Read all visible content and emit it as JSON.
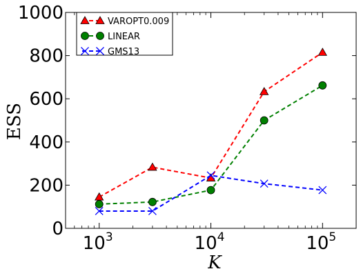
{
  "chart_data": {
    "type": "line",
    "xscale": "log",
    "xlim": [
      500,
      200000
    ],
    "ylim": [
      0,
      1000
    ],
    "xlabel": "K",
    "ylabel": "ESS",
    "grid": false,
    "legend_position": "top-left",
    "x": [
      1000,
      3000,
      10000,
      30000,
      100000
    ],
    "x_ticks": [
      {
        "value": 1000,
        "base": "10",
        "exp": "3"
      },
      {
        "value": 10000,
        "base": "10",
        "exp": "4"
      },
      {
        "value": 100000,
        "base": "10",
        "exp": "5"
      }
    ],
    "y_ticks": [
      {
        "value": 0,
        "label": "0"
      },
      {
        "value": 200,
        "label": "200"
      },
      {
        "value": 400,
        "label": "400"
      },
      {
        "value": 600,
        "label": "600"
      },
      {
        "value": 800,
        "label": "800"
      },
      {
        "value": 1000,
        "label": "1000"
      }
    ],
    "series": [
      {
        "name": "VAROPT0.009",
        "color": "#ff0000",
        "marker": "triangle",
        "values": [
          145,
          283,
          233,
          633,
          815
        ]
      },
      {
        "name": "LINEAR",
        "color": "#008000",
        "marker": "circle",
        "values": [
          112,
          122,
          177,
          500,
          662
        ]
      },
      {
        "name": "GMS13",
        "color": "#0000ff",
        "marker": "x",
        "values": [
          80,
          80,
          245,
          207,
          177
        ]
      }
    ]
  }
}
